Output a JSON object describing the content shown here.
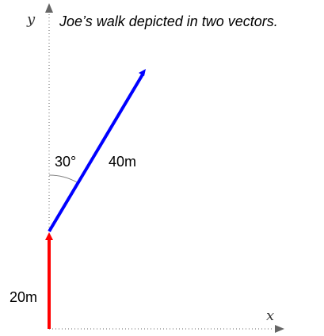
{
  "title": "Joe’s walk depicted in two vectors.",
  "axes": {
    "x_label": "x",
    "y_label": "y"
  },
  "vectors": [
    {
      "name": "first-leg",
      "magnitude_label": "20m",
      "color": "#ff0000",
      "direction": "north"
    },
    {
      "name": "second-leg",
      "magnitude_label": "40m",
      "color": "#0000ff",
      "angle_label": "30°",
      "angle_reference": "y-axis"
    }
  ],
  "colors": {
    "axis": "#666666",
    "angle_arc": "#808080",
    "text": "#000000"
  }
}
